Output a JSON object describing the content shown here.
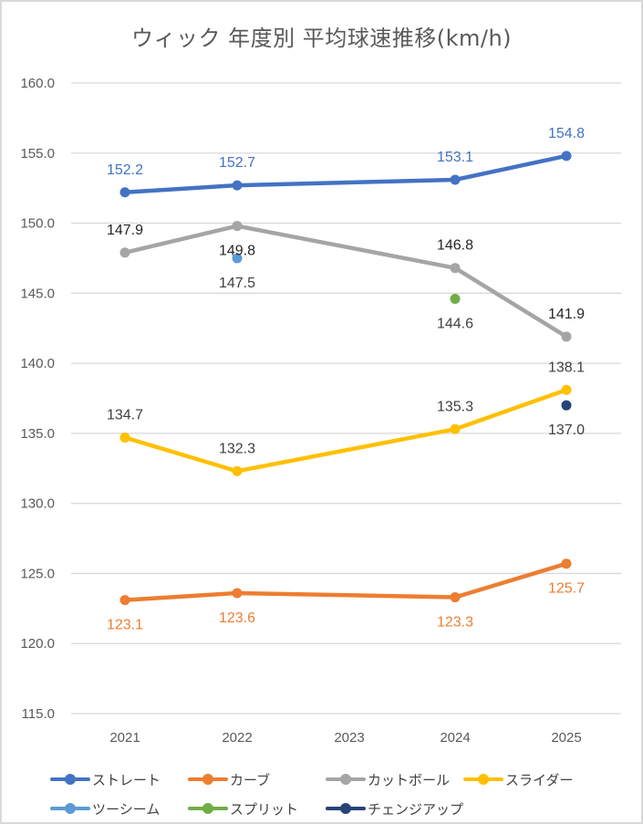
{
  "chart_data": {
    "type": "line",
    "title": "ウィック 年度別 平均球速推移(km/h)",
    "xlabel": "",
    "ylabel": "",
    "categories": [
      "2021",
      "2022",
      "2023",
      "2024",
      "2025"
    ],
    "ylim": [
      115.0,
      160.0
    ],
    "yticks": [
      "115.0",
      "120.0",
      "125.0",
      "130.0",
      "135.0",
      "140.0",
      "145.0",
      "150.0",
      "155.0",
      "160.0"
    ],
    "grid": true,
    "legend_position": "bottom",
    "series": [
      {
        "name": "ストレート",
        "color": "#4472c4",
        "values": [
          152.2,
          152.7,
          null,
          153.1,
          154.8
        ],
        "labels": [
          "152.2",
          "152.7",
          null,
          "153.1",
          "154.8"
        ],
        "label_pos": [
          "above",
          "above",
          null,
          "above",
          "above"
        ],
        "label_color": "#4472c4",
        "connect": true
      },
      {
        "name": "カーブ",
        "color": "#ed7d31",
        "values": [
          123.1,
          123.6,
          null,
          123.3,
          125.7
        ],
        "labels": [
          "123.1",
          "123.6",
          null,
          "123.3",
          "125.7"
        ],
        "label_pos": [
          "below",
          "below",
          null,
          "below",
          "below"
        ],
        "label_color": "#ed7d31",
        "connect": true
      },
      {
        "name": "カットボール",
        "color": "#a5a5a5",
        "values": [
          147.9,
          149.8,
          null,
          146.8,
          141.9
        ],
        "labels": [
          "147.9",
          "149.8",
          null,
          "146.8",
          "141.9"
        ],
        "label_pos": [
          "above",
          "below",
          null,
          "above",
          "above"
        ],
        "label_color": "#262626",
        "connect": true
      },
      {
        "name": "スライダー",
        "color": "#ffc000",
        "values": [
          134.7,
          132.3,
          null,
          135.3,
          138.1
        ],
        "labels": [
          "134.7",
          "132.3",
          null,
          "135.3",
          "138.1"
        ],
        "label_pos": [
          "above",
          "above",
          null,
          "above",
          "above"
        ],
        "label_color": "#404040",
        "connect": true
      },
      {
        "name": "ツーシーム",
        "color": "#5b9bd5",
        "values": [
          null,
          147.5,
          null,
          null,
          null
        ],
        "labels": [
          null,
          "147.5",
          null,
          null,
          null
        ],
        "label_pos": [
          null,
          "below",
          null,
          null,
          null
        ],
        "label_color": "#404040",
        "connect": false
      },
      {
        "name": "スプリット",
        "color": "#70ad47",
        "values": [
          null,
          null,
          null,
          144.6,
          null
        ],
        "labels": [
          null,
          null,
          null,
          "144.6",
          null
        ],
        "label_pos": [
          null,
          null,
          null,
          "below",
          null
        ],
        "label_color": "#404040",
        "connect": false
      },
      {
        "name": "チェンジアップ",
        "color": "#264478",
        "values": [
          null,
          null,
          null,
          null,
          137.0
        ],
        "labels": [
          null,
          null,
          null,
          null,
          "137.0"
        ],
        "label_pos": [
          null,
          null,
          null,
          null,
          "below"
        ],
        "label_color": "#404040",
        "connect": false
      }
    ]
  }
}
